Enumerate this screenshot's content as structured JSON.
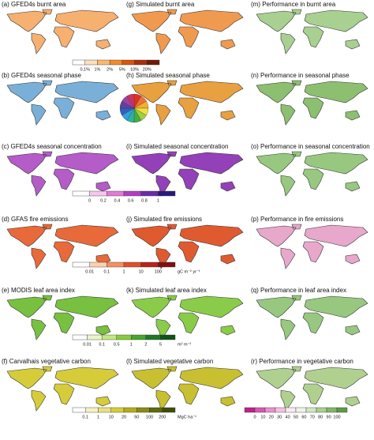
{
  "panels": [
    {
      "title": "(a) GFED4s burnt area"
    },
    {
      "title": "(g) Simulated burnt area"
    },
    {
      "title": "(m) Performance in burnt area"
    },
    {
      "title": "(b) GFED4s seasonal phase"
    },
    {
      "title": "(h) Simulated seasonal phase"
    },
    {
      "title": "(n) Performance in seasonal phase"
    },
    {
      "title": "(c) GFED4s seasonal concentration"
    },
    {
      "title": "(i) Simulated seasonal concentration"
    },
    {
      "title": "(o) Performance in seasonal concentration"
    },
    {
      "title": "(d) GFAS fire emissions"
    },
    {
      "title": "(j) Simulated fire emissions"
    },
    {
      "title": "(p) Performance in fire emissions"
    },
    {
      "title": "(e) MODIS leaf area index"
    },
    {
      "title": "(k) Simulated leaf area index"
    },
    {
      "title": "(q) Performance in leaf area index"
    },
    {
      "title": "(f) Carvalhais vegetative carbon"
    },
    {
      "title": "(l) Simulated vegetative carbon"
    },
    {
      "title": "(r) Performance in vegetative carbon"
    }
  ],
  "colorbars": [
    {
      "labels": [
        "0.1%",
        "1%",
        "2%",
        "5%",
        "10%",
        "20%"
      ],
      "colors": [
        "#ffffff",
        "#fde0b8",
        "#fbb870",
        "#f28a2a",
        "#d9540c",
        "#a8300a",
        "#6e1a06"
      ]
    },
    {
      "labels": [
        "0",
        "0.2",
        "0.4",
        "0.6",
        "0.8",
        "1"
      ],
      "colors": [
        "#ffffff",
        "#f6c6ec",
        "#e27ad6",
        "#b43cc6",
        "#6a2aa8",
        "#2a1a78"
      ]
    },
    {
      "labels": [
        "0.01",
        "0.1",
        "1",
        "10",
        "100"
      ],
      "unit": "gC m⁻² yr⁻¹",
      "colors": [
        "#ffffff",
        "#fcd0b0",
        "#f59060",
        "#e0502a",
        "#b8241a",
        "#801010"
      ]
    },
    {
      "labels": [
        "0.01",
        "0.1",
        "0.5",
        "1",
        "2",
        "5"
      ],
      "unit": "m² m⁻²",
      "colors": [
        "#ffffff",
        "#e8f6c8",
        "#c2e880",
        "#86cc3c",
        "#46a82a",
        "#1e7a22",
        "#0e5418"
      ]
    },
    {
      "labels": [
        "0.1",
        "1",
        "10",
        "20",
        "50",
        "100",
        "200"
      ],
      "unit": "MgC ha⁻¹",
      "colors": [
        "#ffffff",
        "#f6f2c0",
        "#eae080",
        "#d6cc3a",
        "#b6ac1a",
        "#8a8c10",
        "#5e6a0c",
        "#3e4e08"
      ]
    },
    {
      "labels": [
        "0",
        "10",
        "20",
        "30",
        "40",
        "50",
        "60",
        "70",
        "80",
        "90",
        "100"
      ],
      "colors": [
        "#c0208c",
        "#d858b0",
        "#e890cc",
        "#f4c0e0",
        "#faeaf2",
        "#eef4e6",
        "#d0e6c0",
        "#a8d090",
        "#80b868",
        "#5c9c48"
      ]
    }
  ]
}
